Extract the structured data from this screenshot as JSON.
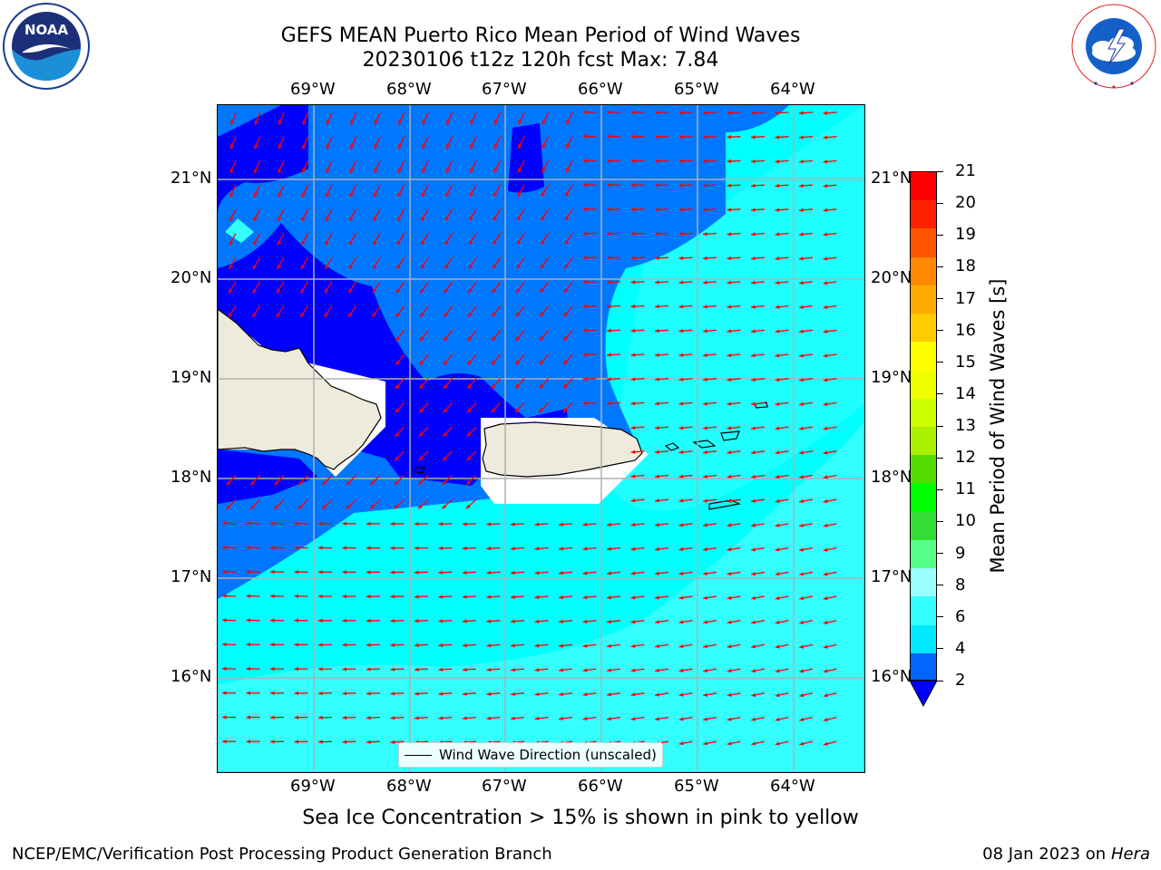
{
  "title": {
    "line1": "GEFS MEAN Puerto Rico Mean Period of Wind Waves",
    "line2": "20230106 t12z 120h fcst   Max: 7.84"
  },
  "logos": {
    "left": {
      "name": "noaa-logo",
      "text": "NOAA",
      "ring_text": "NATIONAL OCEANIC AND ATMOSPHERIC ADMINISTRATION · U.S. DEPARTMENT OF COMMERCE"
    },
    "right": {
      "name": "nws-logo",
      "ring_text": "NATIONAL WEATHER SERVICE"
    }
  },
  "map": {
    "region": "Puerto Rico",
    "lon_labels": [
      "69°W",
      "68°W",
      "67°W",
      "66°W",
      "65°W",
      "64°W"
    ],
    "lat_labels": [
      "21°N",
      "20°N",
      "19°N",
      "18°N",
      "17°N",
      "16°N"
    ],
    "grid": true,
    "arrow_color": "#ff0000",
    "land_color": "#eeebdc",
    "legend": {
      "entry": "Wind Wave Direction (unscaled)"
    }
  },
  "colorbar": {
    "label": "Mean Period of Wind Waves [s]",
    "tick_labels": [
      "2",
      "4",
      "6",
      "8",
      "9",
      "10",
      "11",
      "12",
      "13",
      "14",
      "15",
      "16",
      "17",
      "18",
      "19",
      "20",
      "21"
    ],
    "colors": [
      "#0066ff",
      "#00e8ff",
      "#33ffff",
      "#99ffff",
      "#55ff88",
      "#33dd33",
      "#00ff00",
      "#55dd00",
      "#aaee00",
      "#ccff00",
      "#eeff00",
      "#ffff00",
      "#ffcc00",
      "#ffaa00",
      "#ff8800",
      "#ff5500",
      "#ff2200",
      "#ff0000"
    ],
    "extend_color": "#0000ff"
  },
  "subcaption": "Sea Ice Concentration > 15% is shown in pink to yellow",
  "footer": {
    "left": "NCEP/EMC/Verification Post Processing Product Generation Branch",
    "right_prefix": "08 Jan 2023 on ",
    "right_host": "Hera"
  }
}
